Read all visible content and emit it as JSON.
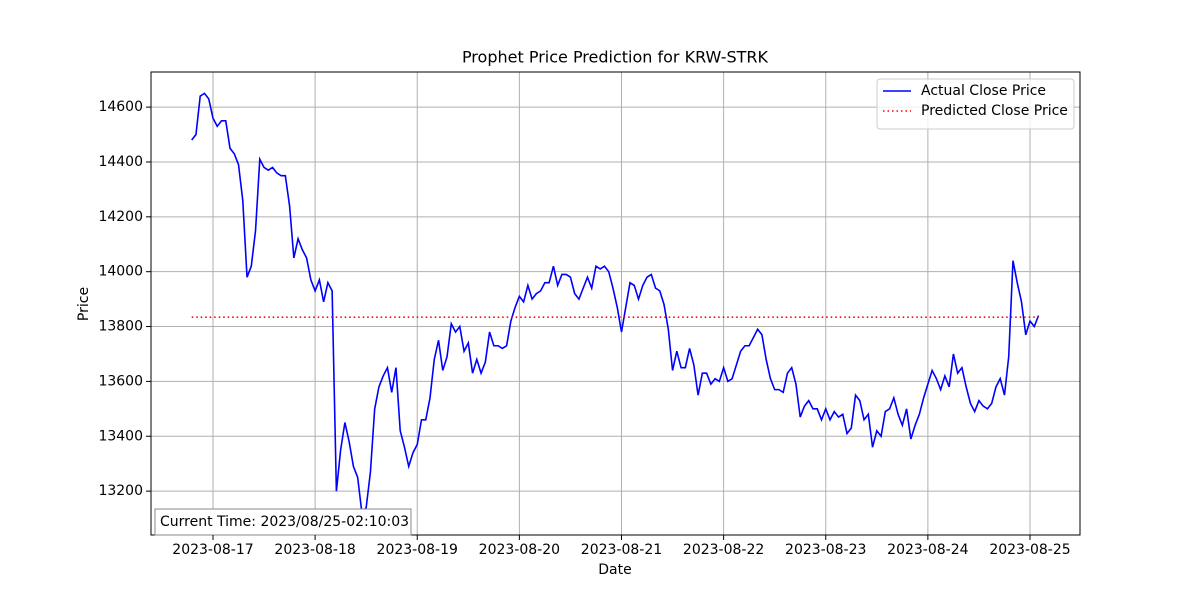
{
  "chart_data": {
    "type": "line",
    "title": "Prophet Price Prediction for KRW-STRK",
    "x_label": "Date",
    "y_label": "Price",
    "annotation": "Current Time: 2023/08/25-02:10:03",
    "xlim": [
      "2023-08-16 09:26",
      "2023-08-25 11:45"
    ],
    "ylim": [
      13040,
      14728
    ],
    "xticks": [
      "2023-08-17",
      "2023-08-18",
      "2023-08-19",
      "2023-08-20",
      "2023-08-21",
      "2023-08-22",
      "2023-08-23",
      "2023-08-24",
      "2023-08-25"
    ],
    "yticks": [
      13200,
      13400,
      13600,
      13800,
      14000,
      14200,
      14400,
      14600
    ],
    "grid": true,
    "legend": "upper right",
    "series": [
      {
        "name": "Actual Close Price",
        "color": "#0000ff",
        "style": "solid",
        "x": [
          "2023-08-16 19:00",
          "2023-08-16 20:00",
          "2023-08-16 21:00",
          "2023-08-16 22:00",
          "2023-08-16 23:00",
          "2023-08-17 00:00",
          "2023-08-17 01:00",
          "2023-08-17 02:00",
          "2023-08-17 03:00",
          "2023-08-17 04:00",
          "2023-08-17 05:00",
          "2023-08-17 06:00",
          "2023-08-17 07:00",
          "2023-08-17 08:00",
          "2023-08-17 09:00",
          "2023-08-17 10:00",
          "2023-08-17 11:00",
          "2023-08-17 12:00",
          "2023-08-17 13:00",
          "2023-08-17 14:00",
          "2023-08-17 15:00",
          "2023-08-17 16:00",
          "2023-08-17 17:00",
          "2023-08-17 18:00",
          "2023-08-17 19:00",
          "2023-08-17 20:00",
          "2023-08-17 21:00",
          "2023-08-17 22:00",
          "2023-08-17 23:00",
          "2023-08-18 00:00",
          "2023-08-18 01:00",
          "2023-08-18 02:00",
          "2023-08-18 03:00",
          "2023-08-18 04:00",
          "2023-08-18 05:00",
          "2023-08-18 06:00",
          "2023-08-18 07:00",
          "2023-08-18 08:00",
          "2023-08-18 09:00",
          "2023-08-18 10:00",
          "2023-08-18 11:00",
          "2023-08-18 12:00",
          "2023-08-18 13:00",
          "2023-08-18 14:00",
          "2023-08-18 15:00",
          "2023-08-18 16:00",
          "2023-08-18 17:00",
          "2023-08-18 18:00",
          "2023-08-18 19:00",
          "2023-08-18 20:00",
          "2023-08-18 21:00",
          "2023-08-18 22:00",
          "2023-08-18 23:00",
          "2023-08-19 00:00",
          "2023-08-19 01:00",
          "2023-08-19 02:00",
          "2023-08-19 03:00",
          "2023-08-19 04:00",
          "2023-08-19 05:00",
          "2023-08-19 06:00",
          "2023-08-19 07:00",
          "2023-08-19 08:00",
          "2023-08-19 09:00",
          "2023-08-19 10:00",
          "2023-08-19 11:00",
          "2023-08-19 12:00",
          "2023-08-19 13:00",
          "2023-08-19 14:00",
          "2023-08-19 15:00",
          "2023-08-19 16:00",
          "2023-08-19 17:00",
          "2023-08-19 18:00",
          "2023-08-19 19:00",
          "2023-08-19 20:00",
          "2023-08-19 21:00",
          "2023-08-19 22:00",
          "2023-08-19 23:00",
          "2023-08-20 00:00",
          "2023-08-20 01:00",
          "2023-08-20 02:00",
          "2023-08-20 03:00",
          "2023-08-20 04:00",
          "2023-08-20 05:00",
          "2023-08-20 06:00",
          "2023-08-20 07:00",
          "2023-08-20 08:00",
          "2023-08-20 09:00",
          "2023-08-20 10:00",
          "2023-08-20 11:00",
          "2023-08-20 12:00",
          "2023-08-20 13:00",
          "2023-08-20 14:00",
          "2023-08-20 15:00",
          "2023-08-20 16:00",
          "2023-08-20 17:00",
          "2023-08-20 18:00",
          "2023-08-20 19:00",
          "2023-08-20 20:00",
          "2023-08-20 21:00",
          "2023-08-20 22:00",
          "2023-08-20 23:00",
          "2023-08-21 00:00",
          "2023-08-21 01:00",
          "2023-08-21 02:00",
          "2023-08-21 03:00",
          "2023-08-21 04:00",
          "2023-08-21 05:00",
          "2023-08-21 06:00",
          "2023-08-21 07:00",
          "2023-08-21 08:00",
          "2023-08-21 09:00",
          "2023-08-21 10:00",
          "2023-08-21 11:00",
          "2023-08-21 12:00",
          "2023-08-21 13:00",
          "2023-08-21 14:00",
          "2023-08-21 15:00",
          "2023-08-21 16:00",
          "2023-08-21 17:00",
          "2023-08-21 18:00",
          "2023-08-21 19:00",
          "2023-08-21 20:00",
          "2023-08-21 21:00",
          "2023-08-21 22:00",
          "2023-08-21 23:00",
          "2023-08-22 00:00",
          "2023-08-22 01:00",
          "2023-08-22 02:00",
          "2023-08-22 03:00",
          "2023-08-22 04:00",
          "2023-08-22 05:00",
          "2023-08-22 06:00",
          "2023-08-22 07:00",
          "2023-08-22 08:00",
          "2023-08-22 09:00",
          "2023-08-22 10:00",
          "2023-08-22 11:00",
          "2023-08-22 12:00",
          "2023-08-22 13:00",
          "2023-08-22 14:00",
          "2023-08-22 15:00",
          "2023-08-22 16:00",
          "2023-08-22 17:00",
          "2023-08-22 18:00",
          "2023-08-22 19:00",
          "2023-08-22 20:00",
          "2023-08-22 21:00",
          "2023-08-22 22:00",
          "2023-08-22 23:00",
          "2023-08-23 00:00",
          "2023-08-23 01:00",
          "2023-08-23 02:00",
          "2023-08-23 03:00",
          "2023-08-23 04:00",
          "2023-08-23 05:00",
          "2023-08-23 06:00",
          "2023-08-23 07:00",
          "2023-08-23 08:00",
          "2023-08-23 09:00",
          "2023-08-23 10:00",
          "2023-08-23 11:00",
          "2023-08-23 12:00",
          "2023-08-23 13:00",
          "2023-08-23 14:00",
          "2023-08-23 15:00",
          "2023-08-23 16:00",
          "2023-08-23 17:00",
          "2023-08-23 18:00",
          "2023-08-23 19:00",
          "2023-08-23 20:00",
          "2023-08-23 21:00",
          "2023-08-23 22:00",
          "2023-08-23 23:00",
          "2023-08-24 00:00",
          "2023-08-24 01:00",
          "2023-08-24 02:00",
          "2023-08-24 03:00",
          "2023-08-24 04:00",
          "2023-08-24 05:00",
          "2023-08-24 06:00",
          "2023-08-24 07:00",
          "2023-08-24 08:00",
          "2023-08-24 09:00",
          "2023-08-24 10:00",
          "2023-08-24 11:00",
          "2023-08-24 12:00",
          "2023-08-24 13:00",
          "2023-08-24 14:00",
          "2023-08-24 15:00",
          "2023-08-24 16:00",
          "2023-08-24 17:00",
          "2023-08-24 18:00",
          "2023-08-24 19:00",
          "2023-08-24 20:00",
          "2023-08-24 21:00",
          "2023-08-24 22:00",
          "2023-08-24 23:00",
          "2023-08-25 00:00",
          "2023-08-25 01:00",
          "2023-08-25 02:00"
        ],
        "values": [
          14480,
          14500,
          14640,
          14650,
          14630,
          14560,
          14530,
          14550,
          14550,
          14450,
          14430,
          14390,
          14260,
          13980,
          14020,
          14150,
          14410,
          14380,
          14370,
          14380,
          14360,
          14350,
          14350,
          14240,
          14050,
          14120,
          14080,
          14050,
          13970,
          13930,
          13970,
          13890,
          13960,
          13930,
          13200,
          13350,
          13450,
          13380,
          13290,
          13250,
          13120,
          13140,
          13270,
          13500,
          13580,
          13620,
          13650,
          13560,
          13650,
          13420,
          13360,
          13290,
          13340,
          13370,
          13460,
          13460,
          13540,
          13680,
          13750,
          13640,
          13690,
          13810,
          13780,
          13800,
          13710,
          13740,
          13630,
          13680,
          13630,
          13670,
          13780,
          13730,
          13730,
          13720,
          13730,
          13820,
          13870,
          13910,
          13890,
          13950,
          13900,
          13920,
          13930,
          13960,
          13960,
          14020,
          13950,
          13990,
          13990,
          13980,
          13920,
          13900,
          13940,
          13980,
          13940,
          14020,
          14010,
          14020,
          14000,
          13940,
          13870,
          13780,
          13870,
          13960,
          13950,
          13900,
          13950,
          13980,
          13990,
          13940,
          13930,
          13880,
          13790,
          13640,
          13710,
          13650,
          13650,
          13720,
          13660,
          13550,
          13630,
          13630,
          13590,
          13610,
          13600,
          13650,
          13600,
          13610,
          13660,
          13710,
          13730,
          13730,
          13760,
          13790,
          13770,
          13680,
          13610,
          13570,
          13570,
          13560,
          13630,
          13650,
          13590,
          13470,
          13510,
          13530,
          13500,
          13500,
          13460,
          13500,
          13460,
          13490,
          13470,
          13480,
          13410,
          13430,
          13550,
          13530,
          13460,
          13480,
          13360,
          13420,
          13400,
          13490,
          13500,
          13540,
          13480,
          13440,
          13500,
          13390,
          13440,
          13480,
          13540,
          13590,
          13640,
          13610,
          13570,
          13620,
          13580,
          13700,
          13630,
          13650,
          13580,
          13520,
          13490,
          13530,
          13510,
          13500,
          13520,
          13580,
          13610,
          13550,
          13690,
          14040,
          13960,
          13890,
          13770,
          13820,
          13800,
          13840
        ]
      },
      {
        "name": "Predicted Close Price",
        "color": "#ff0000",
        "style": "dotted",
        "x": [
          "2023-08-16 19:00",
          "2023-08-25 02:00"
        ],
        "values": [
          13834,
          13834
        ]
      }
    ]
  }
}
